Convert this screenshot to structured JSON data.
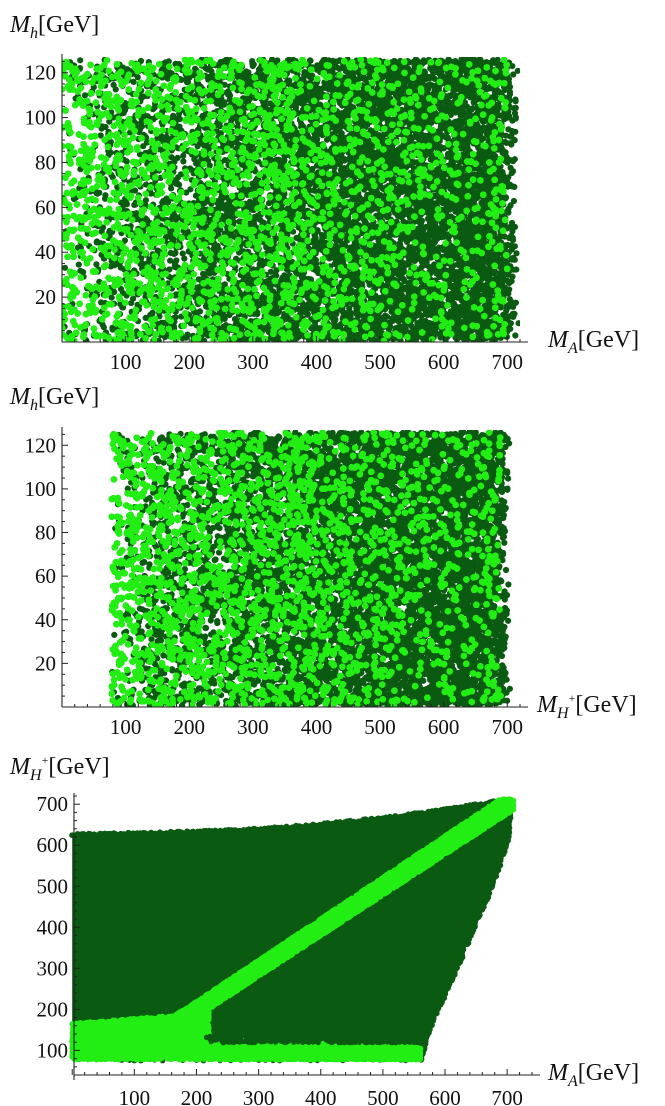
{
  "colors": {
    "dark_green": "#0b5a12",
    "light_green": "#22ee14",
    "mid_green": "#2fb82a"
  },
  "chart_data": [
    {
      "type": "scatter",
      "xlabel": {
        "symbol": "M",
        "sub": "A",
        "sup": "",
        "unit": "[GeV]"
      },
      "ylabel": {
        "symbol": "M",
        "sub": "h",
        "sup": "",
        "unit": "[GeV]"
      },
      "xlim": [
        0,
        720
      ],
      "ylim": [
        0,
        127
      ],
      "xticks": [
        100,
        200,
        300,
        400,
        500,
        600,
        700
      ],
      "yticks": [
        20,
        40,
        60,
        80,
        100,
        120
      ],
      "grid": false,
      "series": [
        {
          "color_key": "dark_green",
          "region": "full scan rectangle, right edge ragged near 650-710",
          "x": [
            3,
            60,
            120,
            180,
            240,
            300,
            360,
            420,
            480,
            540,
            580,
            600,
            620,
            640,
            660,
            680,
            690,
            700,
            705,
            710
          ],
          "y": [
            125,
            110,
            90,
            70,
            50,
            30,
            10,
            125,
            100,
            80,
            120,
            105,
            90,
            75,
            60,
            45,
            30,
            20,
            10,
            112
          ]
        },
        {
          "color_key": "light_green",
          "region": "dense fill, thinning toward higher M_A",
          "x": [
            10,
            100,
            200,
            300,
            400,
            500,
            550,
            600,
            650,
            670,
            680,
            690
          ],
          "y": [
            5,
            30,
            60,
            90,
            120,
            100,
            70,
            40,
            20,
            60,
            110,
            85
          ]
        }
      ]
    },
    {
      "type": "scatter",
      "xlabel": {
        "symbol": "M",
        "sub": "H",
        "sup": "+",
        "unit": "[GeV]"
      },
      "ylabel": {
        "symbol": "M",
        "sub": "h",
        "sup": "",
        "unit": "[GeV]"
      },
      "xlim": [
        0,
        720
      ],
      "ylim": [
        0,
        127
      ],
      "xticks": [
        100,
        200,
        300,
        400,
        500,
        600,
        700
      ],
      "yticks": [
        20,
        40,
        60,
        80,
        100,
        120
      ],
      "grid": false,
      "series": [
        {
          "color_key": "dark_green",
          "region": "scan rectangle starting at M_H+ ~ 78, ragged right edge near 680-700",
          "x": [
            80,
            150,
            250,
            350,
            450,
            550,
            600,
            650,
            670,
            690,
            700
          ],
          "y": [
            125,
            100,
            75,
            50,
            25,
            5,
            110,
            80,
            60,
            40,
            20
          ]
        },
        {
          "color_key": "light_green",
          "region": "dense fill from M_H+ ~ 78, thinning toward higher M_H+",
          "x": [
            80,
            150,
            250,
            350,
            450,
            550,
            650,
            680,
            695
          ],
          "y": [
            5,
            40,
            80,
            120,
            90,
            60,
            30,
            100,
            10
          ]
        }
      ]
    },
    {
      "type": "scatter",
      "xlabel": {
        "symbol": "M",
        "sub": "A",
        "sup": "",
        "unit": "[GeV]"
      },
      "ylabel": {
        "symbol": "M",
        "sub": "H",
        "sup": "+",
        "unit": "[GeV]"
      },
      "xlim": [
        -10,
        740
      ],
      "ylim": [
        40,
        720
      ],
      "xticks": [
        100,
        200,
        300,
        400,
        500,
        600,
        700
      ],
      "yticks": [
        100,
        200,
        300,
        400,
        500,
        600,
        700
      ],
      "grid": false,
      "series": [
        {
          "color_key": "dark_green",
          "region": "allowed region between M_H+ ~ 78 and upper edge ~ 625-710, right edge curving from (560,80) to (705,700)",
          "boundary_x": [
            0,
            100,
            200,
            300,
            400,
            500,
            600,
            680,
            705,
            700,
            680,
            640,
            600,
            570,
            560,
            0
          ],
          "boundary_y": [
            625,
            628,
            632,
            638,
            650,
            665,
            685,
            705,
            700,
            620,
            520,
            380,
            240,
            140,
            78,
            78
          ]
        },
        {
          "color_key": "light_green",
          "region": "diagonal band M_H+ ~ M_A, plus low band M_H+ < ~170 for M_A < ~560",
          "band_x": [
            210,
            300,
            400,
            500,
            600,
            700
          ],
          "band_y": [
            210,
            300,
            400,
            500,
            600,
            700
          ],
          "low_x": [
            0,
            100,
            200,
            300,
            400,
            500,
            555
          ],
          "low_y": [
            165,
            170,
            190,
            140,
            120,
            110,
            100
          ]
        }
      ]
    }
  ]
}
